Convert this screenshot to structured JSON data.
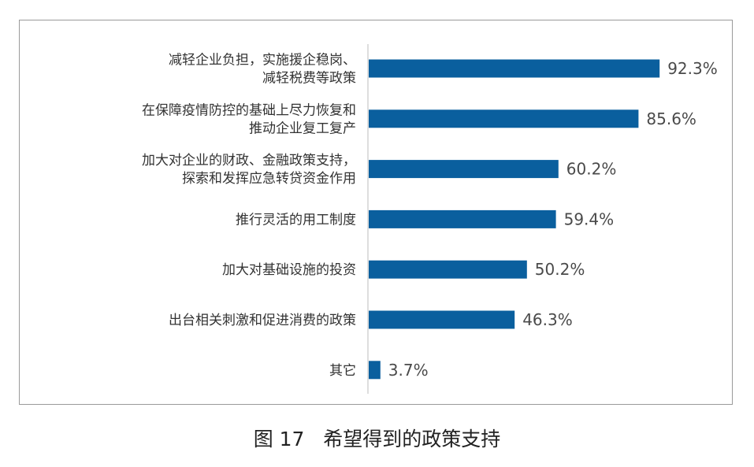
{
  "chart_data": {
    "type": "bar",
    "orientation": "horizontal",
    "categories": [
      [
        "减轻企业负担，实施援企稳岗、",
        "减轻税费等政策"
      ],
      [
        "在保障疫情防控的基础上尽力恢复和",
        "推动企业复工复产"
      ],
      [
        "加大对企业的财政、金融政策支持，",
        "探索和发挥应急转贷资金作用"
      ],
      [
        "推行灵活的用工制度"
      ],
      [
        "加大对基础设施的投资"
      ],
      [
        "出台相关刺激和促进消费的政策"
      ],
      [
        "其它"
      ]
    ],
    "values": [
      92.3,
      85.6,
      60.2,
      59.4,
      50.2,
      46.3,
      3.7
    ],
    "value_labels": [
      "92.3%",
      "85.6%",
      "60.2%",
      "59.4%",
      "50.2%",
      "46.3%",
      "3.7%"
    ],
    "xlim": [
      0,
      100
    ],
    "unit": "%",
    "grid": false,
    "legend": "none",
    "bar_color": "#0a5f9e",
    "axis_color": "#bdbdbd"
  },
  "caption": "图 17   希望得到的政策支持"
}
